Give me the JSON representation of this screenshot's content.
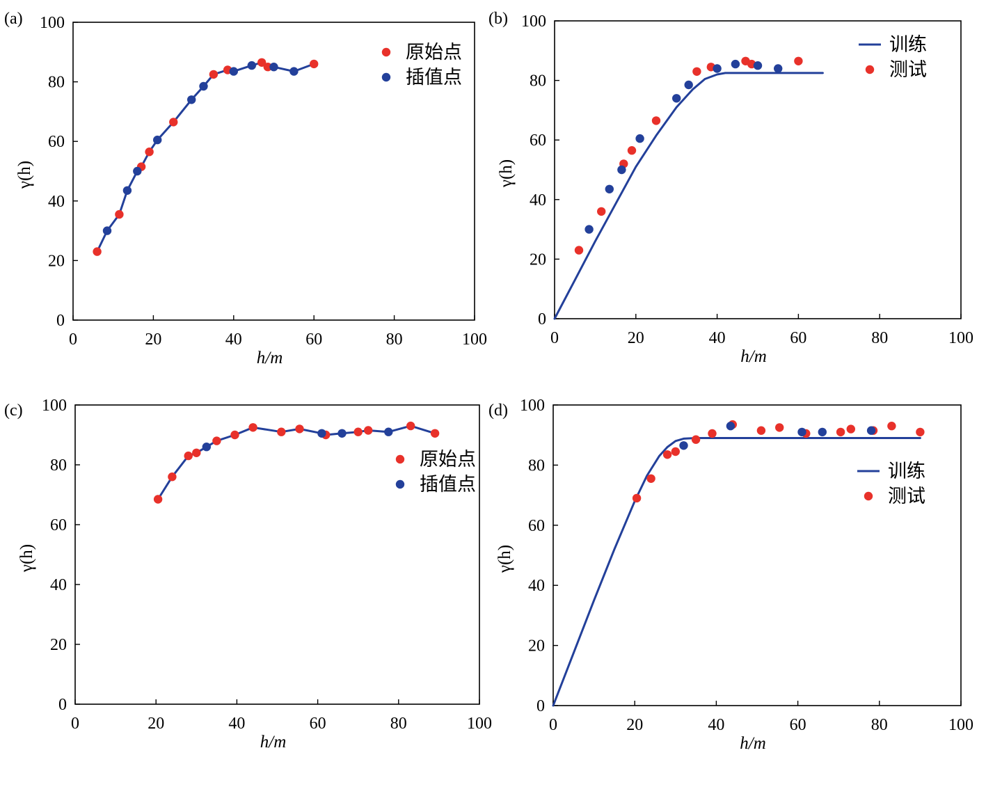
{
  "colors": {
    "orig": "#e8312a",
    "interp": "#23409a",
    "line": "#23409a"
  },
  "chart_data": [
    {
      "type": "line",
      "panel_label": "(a)",
      "xlabel": "h/m",
      "ylabel": "γ(h)",
      "xlim": [
        0,
        100
      ],
      "ylim": [
        0,
        100
      ],
      "xticks": [
        "0",
        "20",
        "40",
        "60",
        "80",
        "100"
      ],
      "yticks": [
        "0",
        "20",
        "40",
        "60",
        "80",
        "100"
      ],
      "legend": [
        "原始点",
        "插值点"
      ],
      "legend_kind": "points",
      "legend_position": "top-right",
      "line": {
        "x": [
          6,
          8.5,
          11.5,
          13.5,
          16,
          17,
          19,
          21,
          25,
          29.5,
          32.5,
          35,
          38.5,
          40,
          44.5,
          47,
          48.5,
          50,
          55,
          60
        ],
        "y": [
          23,
          30,
          35.5,
          43.5,
          50,
          51.5,
          56.5,
          60.5,
          66.5,
          74,
          78.5,
          82.5,
          84,
          83.5,
          85.5,
          86.5,
          85,
          85,
          83.5,
          86
        ]
      },
      "series": [
        {
          "name": "原始点",
          "x": [
            6,
            11.5,
            17,
            19,
            25,
            35,
            38.5,
            47,
            48.5,
            60
          ],
          "y": [
            23,
            35.5,
            51.5,
            56.5,
            66.5,
            82.5,
            84,
            86.5,
            85,
            86
          ]
        },
        {
          "name": "插值点",
          "x": [
            8.5,
            13.5,
            16,
            21,
            29.5,
            32.5,
            40,
            44.5,
            50,
            55
          ],
          "y": [
            30,
            43.5,
            50,
            60.5,
            74,
            78.5,
            83.5,
            85.5,
            85,
            83.5
          ]
        }
      ]
    },
    {
      "type": "line",
      "panel_label": "(b)",
      "xlabel": "h/m",
      "ylabel": "γ(h)",
      "xlim": [
        0,
        100
      ],
      "ylim": [
        0,
        100
      ],
      "xticks": [
        "0",
        "20",
        "40",
        "60",
        "80",
        "100"
      ],
      "yticks": [
        "0",
        "20",
        "40",
        "60",
        "80",
        "100"
      ],
      "legend": [
        "训练",
        "测试"
      ],
      "legend_kind": "line-point",
      "legend_position": "top-right",
      "line": {
        "x": [
          0,
          5,
          10,
          15,
          20,
          25,
          30,
          34,
          37,
          40,
          42,
          50,
          60,
          66
        ],
        "y": [
          0,
          13,
          26,
          38.5,
          51,
          61.5,
          71,
          77,
          80.5,
          82,
          82.5,
          82.5,
          82.5,
          82.5
        ]
      },
      "series": [
        {
          "name": "测试",
          "x": [
            6,
            11.5,
            17,
            19,
            25,
            35,
            38.5,
            47,
            48.5,
            60
          ],
          "y": [
            23,
            36,
            52,
            56.5,
            66.5,
            83,
            84.5,
            86.5,
            85.5,
            86.5
          ]
        },
        {
          "name": "",
          "x": [
            8.5,
            13.5,
            16.5,
            21,
            30,
            33,
            40,
            44.5,
            50,
            55
          ],
          "y": [
            30,
            43.5,
            50,
            60.5,
            74,
            78.5,
            84,
            85.5,
            85,
            84
          ]
        }
      ]
    },
    {
      "type": "line",
      "panel_label": "(c)",
      "xlabel": "h/m",
      "ylabel": "γ(h)",
      "xlim": [
        0,
        100
      ],
      "ylim": [
        0,
        100
      ],
      "xticks": [
        "0",
        "20",
        "40",
        "60",
        "80",
        "100"
      ],
      "yticks": [
        "0",
        "20",
        "40",
        "60",
        "80",
        "100"
      ],
      "legend": [
        "原始点",
        "插值点"
      ],
      "legend_kind": "points",
      "legend_position": "right",
      "line": {
        "x": [
          20.5,
          24,
          28,
          30,
          32.5,
          35,
          39.5,
          44,
          51,
          55.5,
          61,
          62,
          66,
          70,
          72.5,
          77.5,
          83,
          89
        ],
        "y": [
          68.5,
          76,
          83,
          84,
          86,
          88,
          90,
          92.5,
          91,
          92,
          90.5,
          90,
          90.5,
          91,
          91.5,
          91,
          93,
          90.5
        ]
      },
      "series": [
        {
          "name": "原始点",
          "x": [
            20.5,
            24,
            28,
            30,
            35,
            39.5,
            44,
            51,
            55.5,
            62,
            70,
            72.5,
            83,
            89
          ],
          "y": [
            68.5,
            76,
            83,
            84,
            88,
            90,
            92.5,
            91,
            92,
            90,
            91,
            91.5,
            93,
            90.5
          ]
        },
        {
          "name": "插值点",
          "x": [
            32.5,
            61,
            66,
            77.5
          ],
          "y": [
            86,
            90.5,
            90.5,
            91
          ]
        }
      ]
    },
    {
      "type": "line",
      "panel_label": "(d)",
      "xlabel": "h/m",
      "ylabel": "γ(h)",
      "xlim": [
        0,
        100
      ],
      "ylim": [
        0,
        100
      ],
      "xticks": [
        "0",
        "20",
        "40",
        "60",
        "80",
        "100"
      ],
      "yticks": [
        "0",
        "20",
        "40",
        "60",
        "80",
        "100"
      ],
      "legend": [
        "训练",
        "测试"
      ],
      "legend_kind": "line-point",
      "legend_position": "right",
      "line": {
        "x": [
          0,
          5,
          10,
          15,
          20,
          23,
          26,
          28,
          30,
          32,
          35,
          40,
          50,
          60,
          70,
          80,
          90
        ],
        "y": [
          0,
          17.5,
          35,
          52,
          68,
          76.5,
          83,
          86,
          88,
          88.8,
          89,
          89,
          89,
          89,
          89,
          89,
          89
        ]
      },
      "series": [
        {
          "name": "测试",
          "x": [
            20.5,
            24,
            28,
            30,
            35,
            39,
            44,
            51,
            55.5,
            62,
            70.5,
            73,
            78.5,
            83,
            90
          ],
          "y": [
            69,
            75.5,
            83.5,
            84.5,
            88.5,
            90.5,
            93.5,
            91.5,
            92.5,
            90.5,
            91,
            92,
            91.5,
            93,
            91
          ]
        },
        {
          "name": "",
          "x": [
            32,
            43.5,
            61,
            66,
            78
          ],
          "y": [
            86.5,
            93,
            91,
            91,
            91.5
          ]
        }
      ]
    }
  ]
}
